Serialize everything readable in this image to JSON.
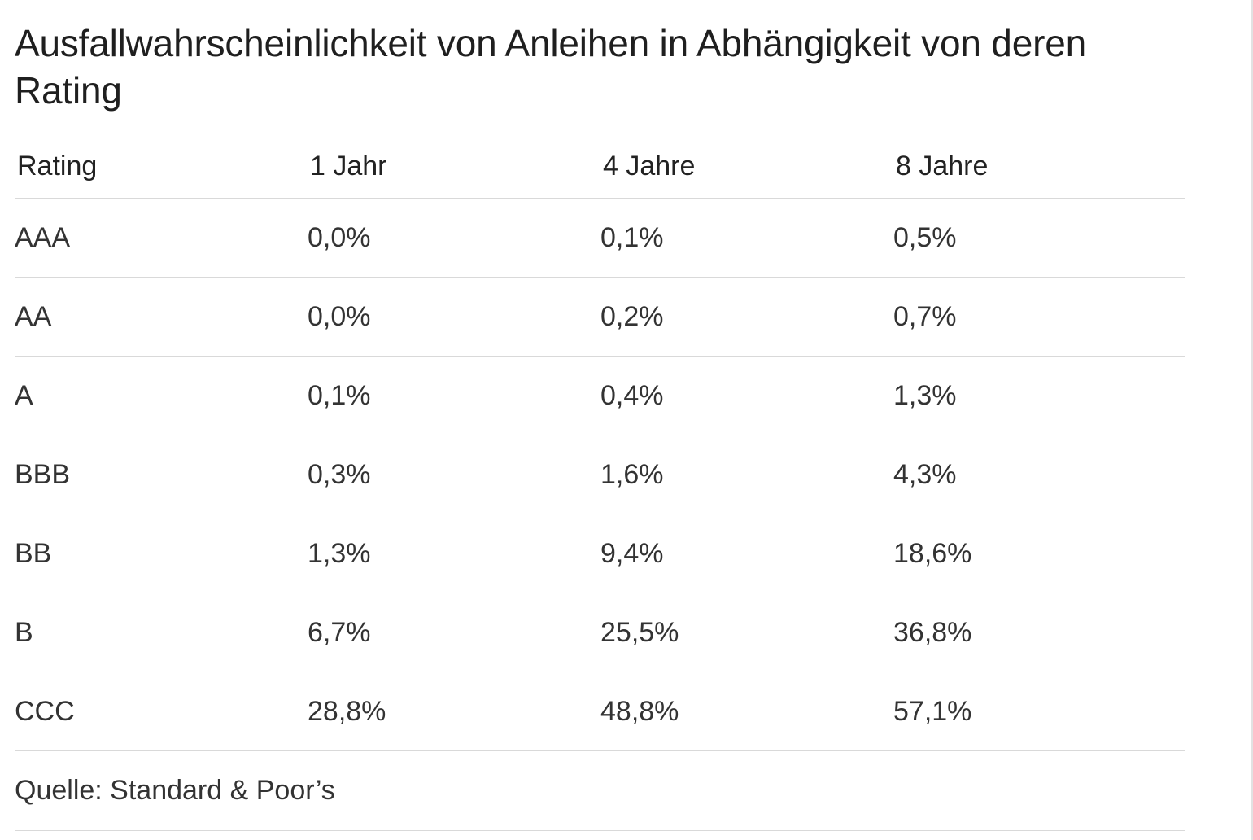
{
  "title": "Ausfallwahrscheinlichkeit von Anleihen in Abhängigkeit von deren Rating",
  "table": {
    "headers": [
      "Rating",
      "1 Jahr",
      "4 Jahre",
      "8 Jahre"
    ],
    "rows": [
      [
        "AAA",
        "0,0%",
        "0,1%",
        "0,5%"
      ],
      [
        "AA",
        "0,0%",
        "0,2%",
        "0,7%"
      ],
      [
        "A",
        "0,1%",
        "0,4%",
        "1,3%"
      ],
      [
        "BBB",
        "0,3%",
        "1,6%",
        "4,3%"
      ],
      [
        "BB",
        "1,3%",
        "9,4%",
        "18,6%"
      ],
      [
        "B",
        "6,7%",
        "25,5%",
        "36,8%"
      ],
      [
        "CCC",
        "28,8%",
        "48,8%",
        "57,1%"
      ]
    ]
  },
  "source": "Quelle: Standard & Poor’s"
}
